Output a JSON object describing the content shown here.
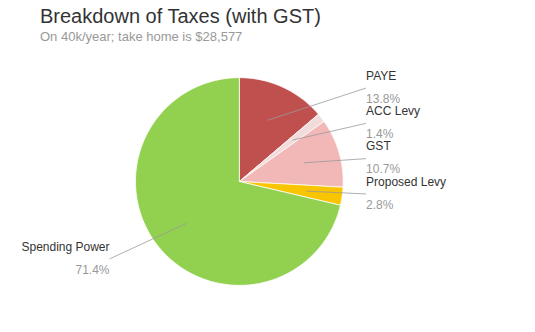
{
  "chart_data": {
    "type": "pie",
    "title": "Breakdown of Taxes (with GST)",
    "subtitle": "On 40k/year; take home is $28,577",
    "categories": [
      "PAYE",
      "ACC Levy",
      "GST",
      "Proposed Levy",
      "Spending Power"
    ],
    "values": [
      13.8,
      1.4,
      10.7,
      2.8,
      71.4
    ],
    "value_labels": [
      "13.8%",
      "1.4%",
      "10.7%",
      "2.8%",
      "71.4%"
    ],
    "data_labels": true,
    "colors": [
      "#c0504d",
      "#f2dcdb",
      "#f2b8b8",
      "#f9c400",
      "#92d050"
    ]
  }
}
